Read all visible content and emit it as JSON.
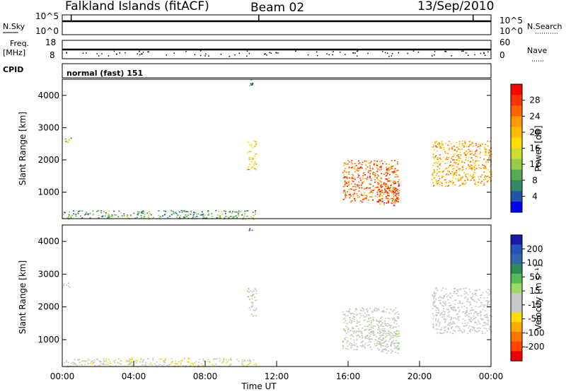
{
  "header": {
    "station": "Falkland Islands (fitACF)",
    "beam": "Beam 02",
    "date": "13/Sep/2010"
  },
  "top_panels": {
    "nsky_label": "N.Sky",
    "nsky_ticks": [
      "10^5",
      "10^0"
    ],
    "nsearch_label": "N.Search",
    "nsearch_ticks": [
      "10^5",
      "10^0"
    ],
    "freq_label_1": "Freq.",
    "freq_label_2": "[MHz]",
    "freq_ticks": [
      "18",
      "8"
    ],
    "nave_label": "Nave",
    "nave_ticks": [
      "60",
      "0"
    ],
    "cpid_label": "CPID",
    "cpid_text": "normal (fast) 151"
  },
  "colorbars": {
    "power": {
      "label": "Power [dB]",
      "ticks": [
        "28",
        "24",
        "20",
        "16",
        "12",
        "8",
        "4"
      ],
      "colors": [
        "#ff0000",
        "#ff3300",
        "#ff6600",
        "#ff9900",
        "#ffbb00",
        "#ffdd00",
        "#ccdd33",
        "#99cc44",
        "#55aa55",
        "#338866",
        "#2255aa",
        "#0000ff"
      ]
    },
    "velocity": {
      "label": "Velocity [m s⁻¹]",
      "ticks": [
        "200",
        "100",
        "50",
        "15",
        "-15",
        "-50",
        "-100",
        "-200"
      ],
      "colors": [
        "#1a1aaa",
        "#2255bb",
        "#3366aa",
        "#2e8b57",
        "#55bb55",
        "#99dd66",
        "#c8c8c8",
        "#c8c8c8",
        "#ffdd00",
        "#ffaa00",
        "#ff7700",
        "#ff4400",
        "#ee0000"
      ]
    }
  },
  "chart_data": [
    {
      "type": "heatmap",
      "title": "",
      "xlabel": "",
      "ylabel": "Slant Range [km]",
      "xlim": [
        "00:00",
        "24:00"
      ],
      "ylim": [
        180,
        4500
      ],
      "yticks": [
        "1000",
        "2000",
        "3000",
        "4000"
      ],
      "quantity": "Power [dB]",
      "echo_regions": [
        {
          "x": [
            "00:00",
            "00:30"
          ],
          "y": [
            2550,
            2750
          ],
          "value_dB": 10
        },
        {
          "x": [
            "00:00",
            "10:50"
          ],
          "y": [
            180,
            450
          ],
          "value_dB": 8
        },
        {
          "x": [
            "10:20",
            "10:40"
          ],
          "y": [
            4300,
            4500
          ],
          "value_dB": 8
        },
        {
          "x": [
            "10:20",
            "10:50"
          ],
          "y": [
            1700,
            2600
          ],
          "value_dB": 18
        },
        {
          "x": [
            "15:40",
            "18:50"
          ],
          "y": [
            700,
            2000
          ],
          "value_dB": 24
        },
        {
          "x": [
            "17:40",
            "18:50"
          ],
          "y": [
            600,
            1300
          ],
          "value_dB": 28
        },
        {
          "x": [
            "20:40",
            "24:00"
          ],
          "y": [
            1200,
            2600
          ],
          "value_dB": 20
        }
      ]
    },
    {
      "type": "heatmap",
      "title": "",
      "xlabel": "Time UT",
      "ylabel": "Slant Range [km]",
      "xlim": [
        "00:00",
        "24:00"
      ],
      "xticks": [
        "00:00",
        "04:00",
        "08:00",
        "12:00",
        "16:00",
        "20:00",
        "00:00"
      ],
      "ylim": [
        180,
        4500
      ],
      "yticks": [
        "1000",
        "2000",
        "3000",
        "4000"
      ],
      "quantity": "Velocity [m s⁻¹]",
      "echo_regions": [
        {
          "x": [
            "00:00",
            "00:30"
          ],
          "y": [
            2550,
            2750
          ],
          "value_ms": 0
        },
        {
          "x": [
            "00:00",
            "10:50"
          ],
          "y": [
            180,
            450
          ],
          "value_ms": -50
        },
        {
          "x": [
            "10:20",
            "10:40"
          ],
          "y": [
            4300,
            4500
          ],
          "value_ms": 200
        },
        {
          "x": [
            "10:20",
            "10:50"
          ],
          "y": [
            1700,
            2600
          ],
          "value_ms": 0
        },
        {
          "x": [
            "15:40",
            "18:50"
          ],
          "y": [
            700,
            2000
          ],
          "value_ms": 0
        },
        {
          "x": [
            "17:40",
            "18:50"
          ],
          "y": [
            600,
            1300
          ],
          "value_ms": 0
        },
        {
          "x": [
            "20:40",
            "24:00"
          ],
          "y": [
            1200,
            2600
          ],
          "value_ms": -15
        }
      ]
    }
  ]
}
